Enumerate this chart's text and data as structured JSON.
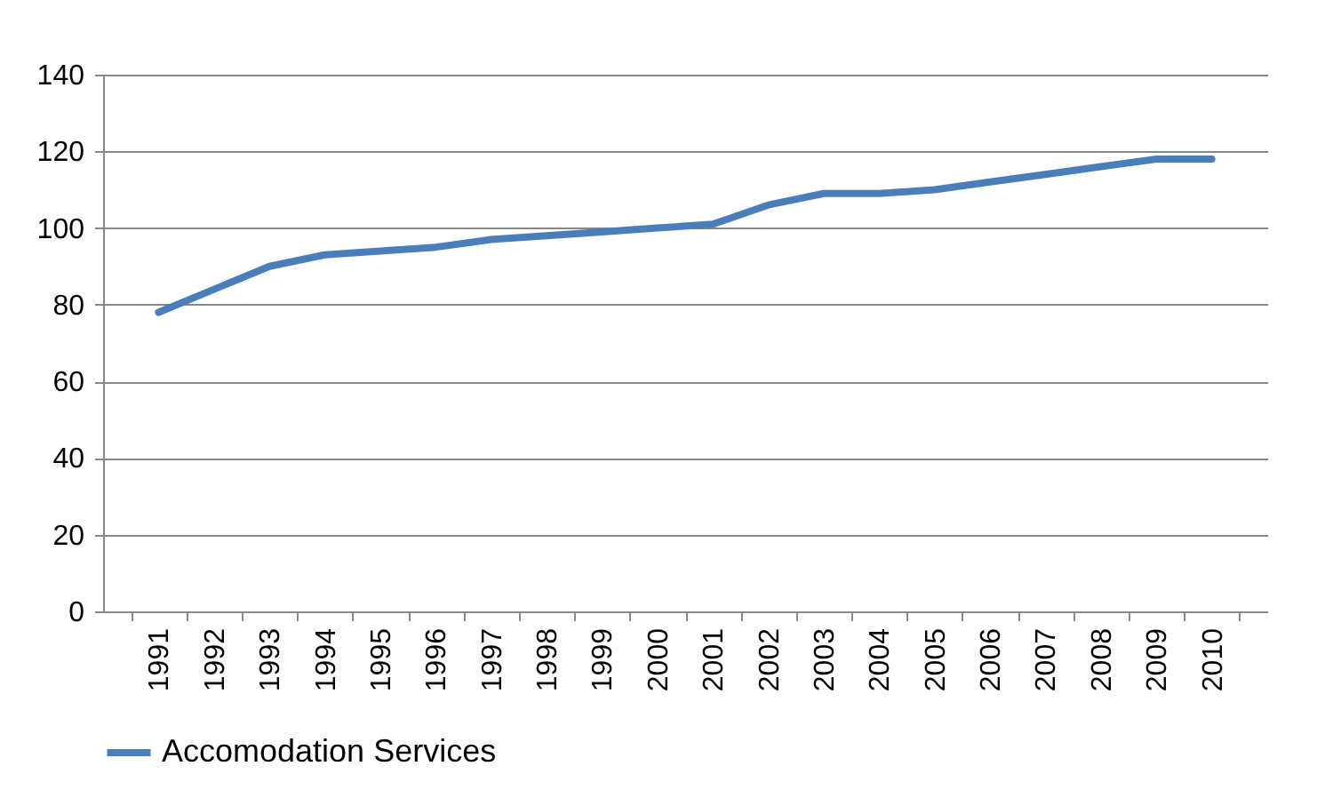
{
  "chart_data": {
    "type": "line",
    "categories": [
      "1991",
      "1992",
      "1993",
      "1994",
      "1995",
      "1996",
      "1997",
      "1998",
      "1999",
      "2000",
      "2001",
      "2002",
      "2003",
      "2004",
      "2005",
      "2006",
      "2007",
      "2008",
      "2009",
      "2010"
    ],
    "series": [
      {
        "name": "Accomodation Services",
        "color": "#4a7ebb",
        "values": [
          78,
          84,
          90,
          93,
          94,
          95,
          97,
          98,
          99,
          100,
          101,
          106,
          109,
          109,
          110,
          112,
          114,
          116,
          118,
          118
        ]
      }
    ],
    "ylim": [
      0,
      140
    ],
    "yticks": [
      0,
      20,
      40,
      60,
      80,
      100,
      120,
      140
    ],
    "grid": "y",
    "legend": "bottom",
    "marker": "none",
    "line_style": "solid"
  }
}
